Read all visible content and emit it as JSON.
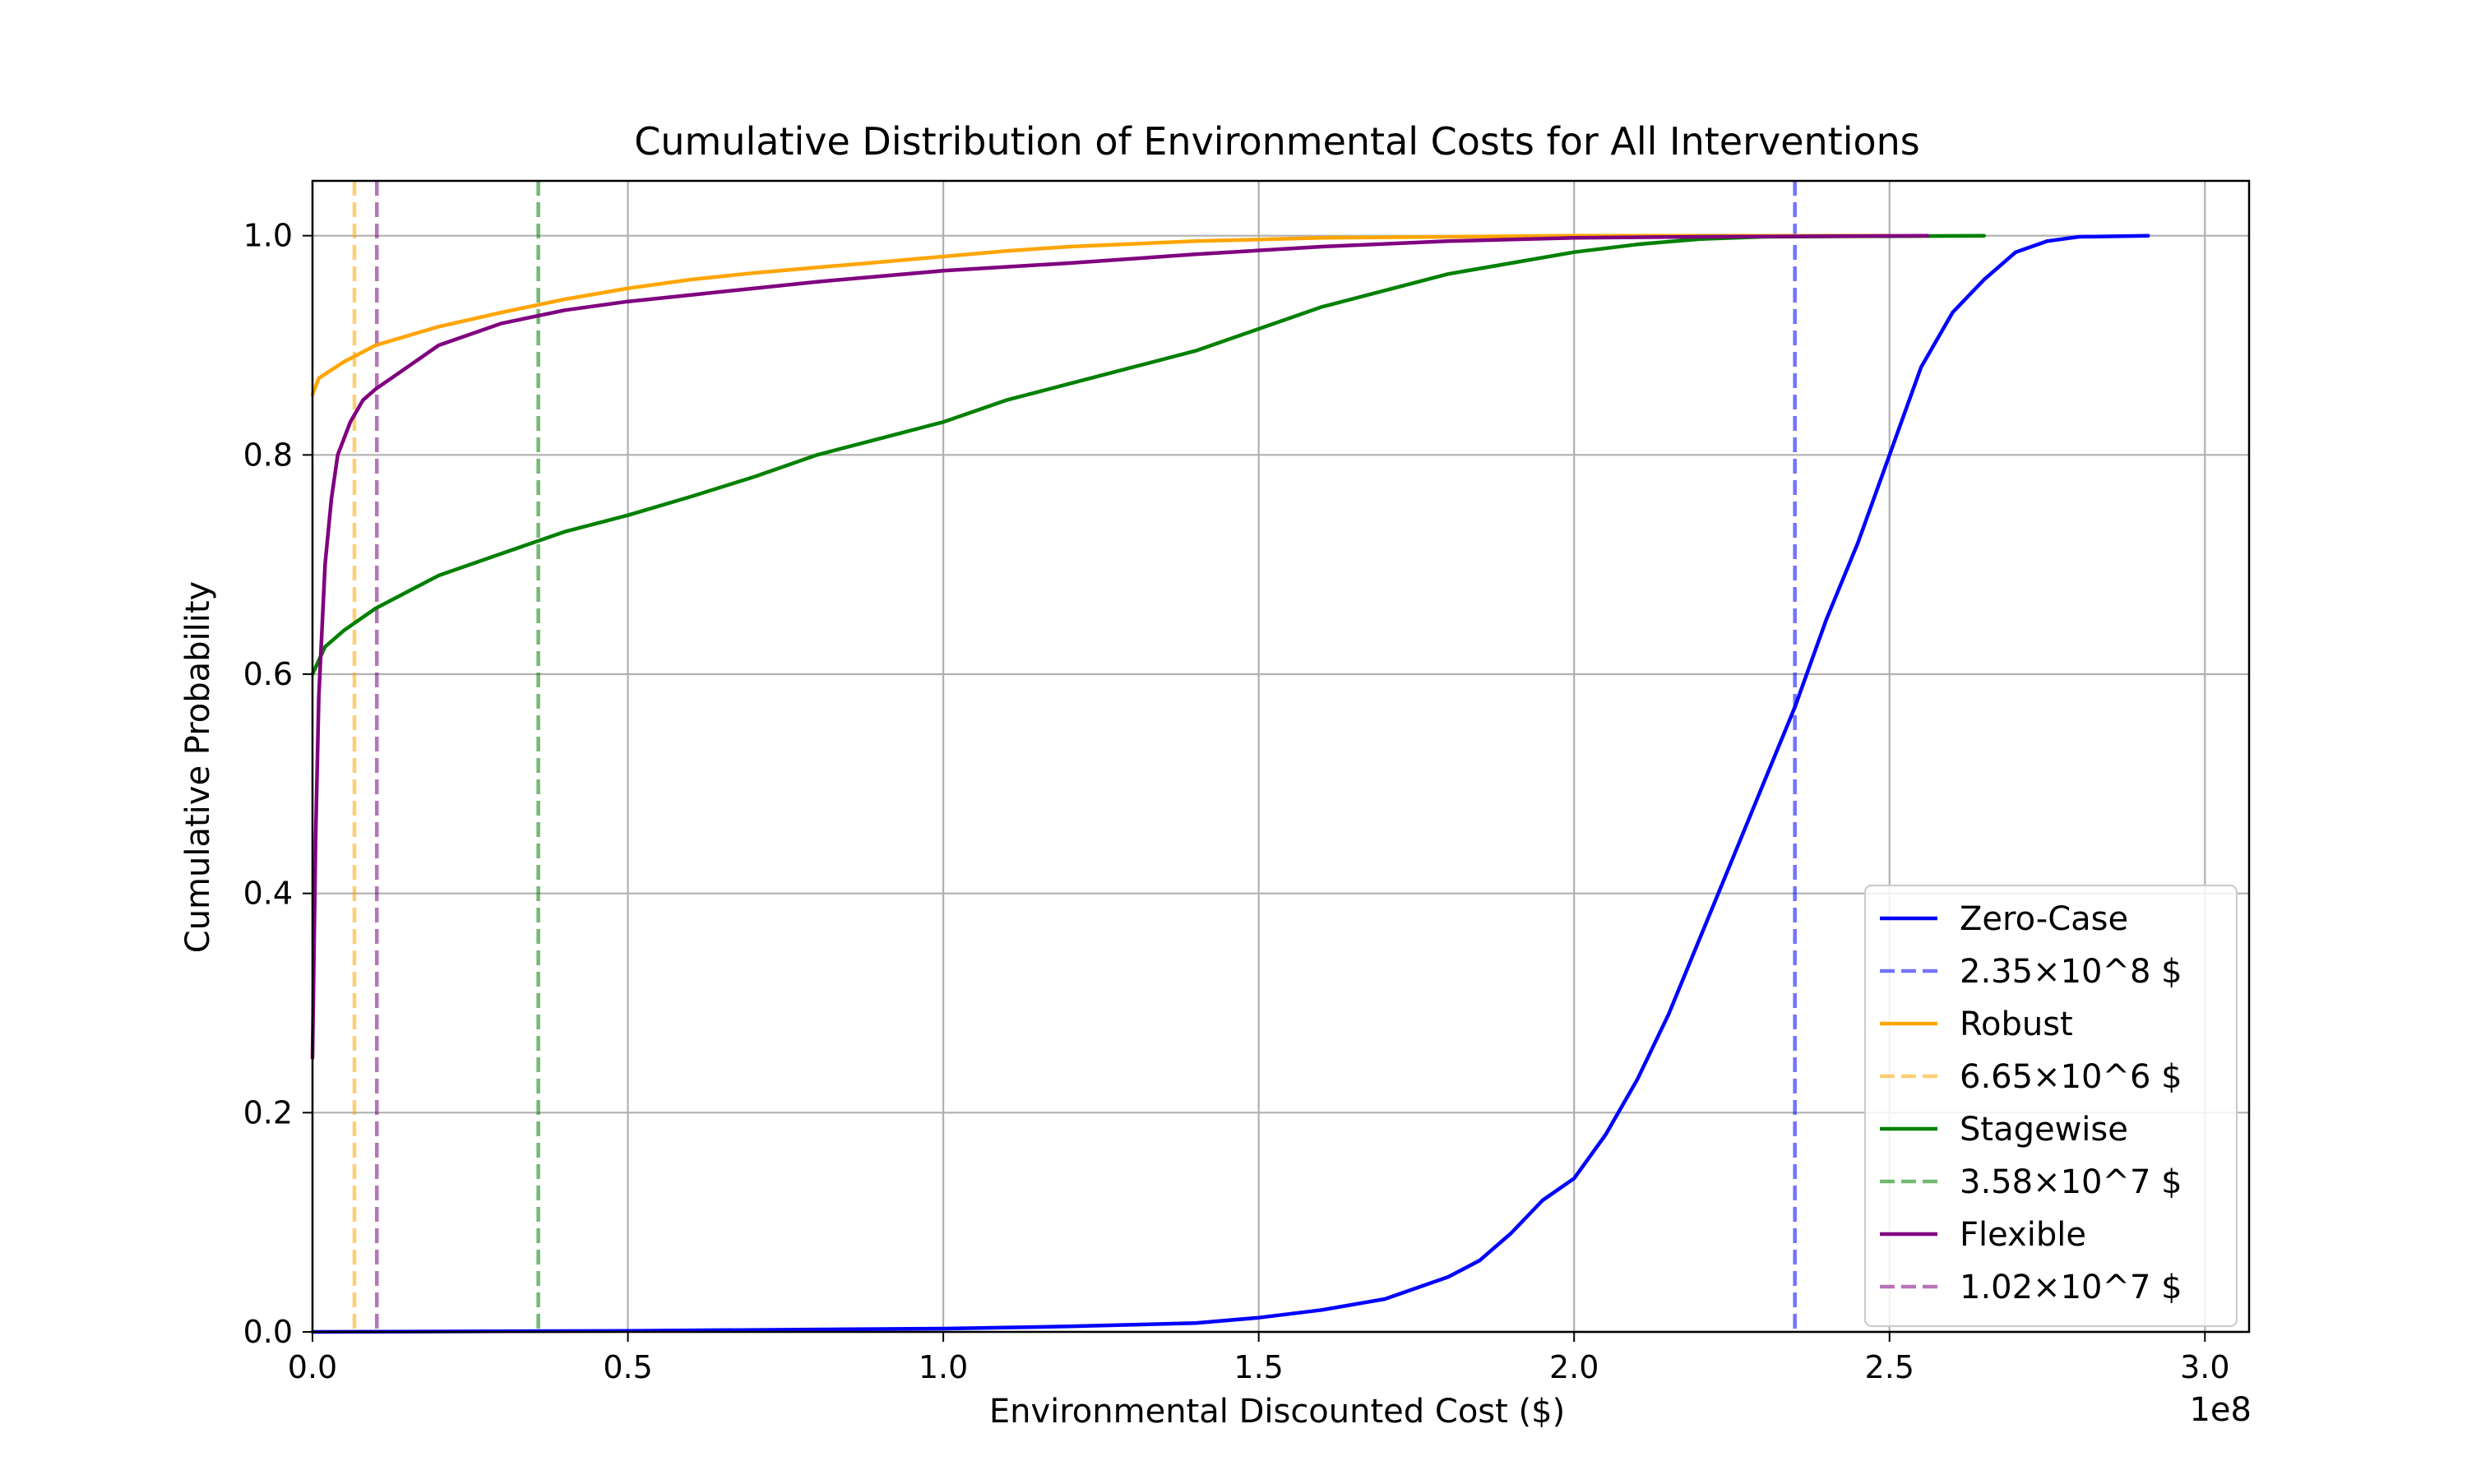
{
  "chart_data": {
    "type": "line",
    "title": "Cumulative Distribution of Environmental Costs for All Interventions",
    "xlabel": "Environmental Discounted Cost ($)",
    "ylabel": "Cumulative Probability",
    "x_offset_label": "1e8",
    "xlim": [
      0,
      307000000
    ],
    "ylim": [
      0,
      1.05
    ],
    "grid": true,
    "legend_position": "lower-right",
    "x_ticks": [
      {
        "value": 0,
        "label": "0.0"
      },
      {
        "value": 50000000,
        "label": "0.5"
      },
      {
        "value": 100000000,
        "label": "1.0"
      },
      {
        "value": 150000000,
        "label": "1.5"
      },
      {
        "value": 200000000,
        "label": "2.0"
      },
      {
        "value": 250000000,
        "label": "2.5"
      },
      {
        "value": 300000000,
        "label": "3.0"
      }
    ],
    "y_ticks": [
      {
        "value": 0.0,
        "label": "0.0"
      },
      {
        "value": 0.2,
        "label": "0.2"
      },
      {
        "value": 0.4,
        "label": "0.4"
      },
      {
        "value": 0.6,
        "label": "0.6"
      },
      {
        "value": 0.8,
        "label": "0.8"
      },
      {
        "value": 1.0,
        "label": "1.0"
      }
    ],
    "series": [
      {
        "name": "Zero-Case",
        "color": "#0000ff",
        "points": [
          [
            0,
            0
          ],
          [
            50000000,
            0.001
          ],
          [
            100000000,
            0.003
          ],
          [
            120000000,
            0.005
          ],
          [
            140000000,
            0.008
          ],
          [
            150000000,
            0.013
          ],
          [
            160000000,
            0.02
          ],
          [
            170000000,
            0.03
          ],
          [
            180000000,
            0.05
          ],
          [
            185000000,
            0.065
          ],
          [
            190000000,
            0.09
          ],
          [
            195000000,
            0.12
          ],
          [
            200000000,
            0.14
          ],
          [
            205000000,
            0.18
          ],
          [
            210000000,
            0.23
          ],
          [
            215000000,
            0.29
          ],
          [
            220000000,
            0.36
          ],
          [
            225000000,
            0.43
          ],
          [
            230000000,
            0.5
          ],
          [
            235000000,
            0.57
          ],
          [
            240000000,
            0.65
          ],
          [
            245000000,
            0.72
          ],
          [
            250000000,
            0.8
          ],
          [
            255000000,
            0.88
          ],
          [
            260000000,
            0.93
          ],
          [
            265000000,
            0.96
          ],
          [
            270000000,
            0.985
          ],
          [
            275000000,
            0.995
          ],
          [
            280000000,
            0.999
          ],
          [
            291000000,
            1.0
          ]
        ]
      },
      {
        "name": "Robust",
        "color": "#ffa500",
        "points": [
          [
            0,
            0.855
          ],
          [
            1000000,
            0.87
          ],
          [
            5000000,
            0.885
          ],
          [
            10000000,
            0.9
          ],
          [
            20000000,
            0.917
          ],
          [
            30000000,
            0.93
          ],
          [
            40000000,
            0.942
          ],
          [
            50000000,
            0.952
          ],
          [
            60000000,
            0.96
          ],
          [
            70000000,
            0.966
          ],
          [
            80000000,
            0.971
          ],
          [
            90000000,
            0.976
          ],
          [
            100000000,
            0.981
          ],
          [
            110000000,
            0.986
          ],
          [
            120000000,
            0.99
          ],
          [
            140000000,
            0.995
          ],
          [
            160000000,
            0.998
          ],
          [
            180000000,
            0.999
          ],
          [
            200000000,
            1.0
          ],
          [
            250000000,
            1.0
          ]
        ]
      },
      {
        "name": "Stagewise",
        "color": "#008000",
        "points": [
          [
            0,
            0.6
          ],
          [
            2000000,
            0.625
          ],
          [
            5000000,
            0.64
          ],
          [
            10000000,
            0.66
          ],
          [
            20000000,
            0.69
          ],
          [
            30000000,
            0.71
          ],
          [
            40000000,
            0.73
          ],
          [
            50000000,
            0.745
          ],
          [
            60000000,
            0.762
          ],
          [
            70000000,
            0.78
          ],
          [
            80000000,
            0.8
          ],
          [
            90000000,
            0.815
          ],
          [
            100000000,
            0.83
          ],
          [
            110000000,
            0.85
          ],
          [
            120000000,
            0.865
          ],
          [
            130000000,
            0.88
          ],
          [
            140000000,
            0.895
          ],
          [
            150000000,
            0.915
          ],
          [
            160000000,
            0.935
          ],
          [
            170000000,
            0.95
          ],
          [
            180000000,
            0.965
          ],
          [
            190000000,
            0.975
          ],
          [
            200000000,
            0.985
          ],
          [
            210000000,
            0.992
          ],
          [
            220000000,
            0.997
          ],
          [
            230000000,
            0.999
          ],
          [
            265000000,
            1.0
          ]
        ]
      },
      {
        "name": "Flexible",
        "color": "#800080",
        "points": [
          [
            0,
            0.25
          ],
          [
            500000,
            0.45
          ],
          [
            1000000,
            0.58
          ],
          [
            2000000,
            0.7
          ],
          [
            3000000,
            0.76
          ],
          [
            4000000,
            0.8
          ],
          [
            6000000,
            0.83
          ],
          [
            8000000,
            0.85
          ],
          [
            10000000,
            0.86
          ],
          [
            15000000,
            0.88
          ],
          [
            20000000,
            0.9
          ],
          [
            30000000,
            0.92
          ],
          [
            40000000,
            0.932
          ],
          [
            50000000,
            0.94
          ],
          [
            60000000,
            0.946
          ],
          [
            70000000,
            0.952
          ],
          [
            80000000,
            0.958
          ],
          [
            90000000,
            0.963
          ],
          [
            100000000,
            0.968
          ],
          [
            120000000,
            0.975
          ],
          [
            140000000,
            0.983
          ],
          [
            160000000,
            0.99
          ],
          [
            180000000,
            0.995
          ],
          [
            200000000,
            0.998
          ],
          [
            220000000,
            0.999
          ],
          [
            256000000,
            1.0
          ]
        ]
      }
    ],
    "reference_lines": [
      {
        "name": "2.35×10^8 $",
        "x": 235000000,
        "color": "#0000ff"
      },
      {
        "name": "6.65×10^6 $",
        "x": 6650000,
        "color": "#ffa500"
      },
      {
        "name": "3.58×10^7 $",
        "x": 35800000,
        "color": "#008000"
      },
      {
        "name": "1.02×10^7 $",
        "x": 10200000,
        "color": "#800080"
      }
    ],
    "legend": [
      {
        "label": "Zero-Case",
        "color": "#0000ff",
        "style": "solid"
      },
      {
        "label": "2.35×10^8 $",
        "color": "#0000ff",
        "style": "dashed"
      },
      {
        "label": "Robust",
        "color": "#ffa500",
        "style": "solid"
      },
      {
        "label": "6.65×10^6 $",
        "color": "#ffa500",
        "style": "dashed"
      },
      {
        "label": "Stagewise",
        "color": "#008000",
        "style": "solid"
      },
      {
        "label": "3.58×10^7 $",
        "color": "#008000",
        "style": "dashed"
      },
      {
        "label": "Flexible",
        "color": "#800080",
        "style": "solid"
      },
      {
        "label": "1.02×10^7 $",
        "color": "#800080",
        "style": "dashed"
      }
    ]
  }
}
